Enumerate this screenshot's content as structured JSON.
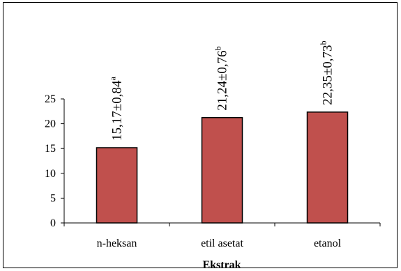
{
  "chart_data": {
    "type": "bar",
    "categories": [
      "n-heksan",
      "etil asetat",
      "etanol"
    ],
    "values": [
      15.17,
      21.24,
      22.35
    ],
    "data_labels": [
      {
        "text": "15,17±0,84",
        "sup": "a"
      },
      {
        "text": "21,24±0,76",
        "sup": "b"
      },
      {
        "text": "22,35±0,73",
        "sup": "b"
      }
    ],
    "xlabel": "Ekstrak",
    "ylabel": "",
    "ylim": [
      0,
      25
    ],
    "yticks": [
      0,
      5,
      10,
      15,
      20,
      25
    ],
    "grid": false,
    "legend": "none",
    "bar_color": "#c0504d",
    "bar_edge_color": "#000000"
  }
}
